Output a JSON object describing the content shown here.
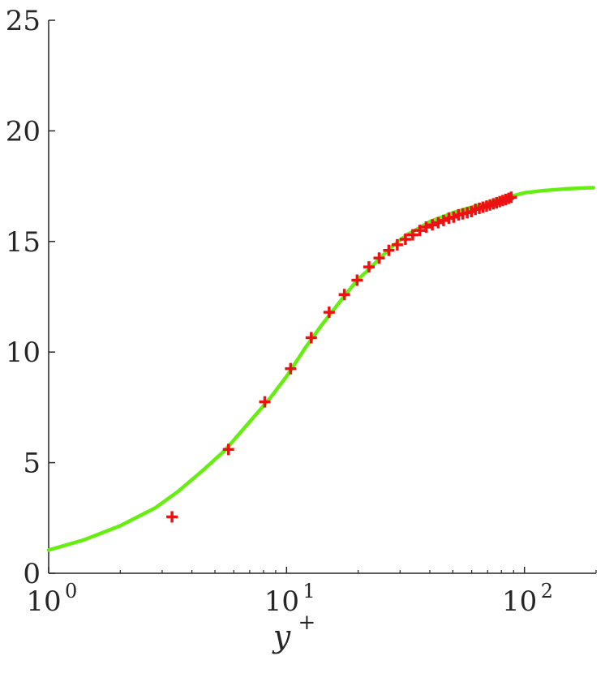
{
  "chart_data": {
    "type": "line",
    "title": "",
    "xlabel": "y",
    "xlabel_sup": "+",
    "ylabel": "",
    "xscale": "log",
    "xlim": [
      1,
      200
    ],
    "ylim": [
      0,
      25
    ],
    "grid": false,
    "x_ticks": [
      {
        "value": 1,
        "base": "10",
        "exp": "0"
      },
      {
        "value": 10,
        "base": "10",
        "exp": "1"
      },
      {
        "value": 100,
        "base": "10",
        "exp": "2"
      }
    ],
    "y_ticks": [
      {
        "value": 0,
        "label": "0"
      },
      {
        "value": 5,
        "label": "5"
      },
      {
        "value": 10,
        "label": "10"
      },
      {
        "value": 15,
        "label": "15"
      },
      {
        "value": 20,
        "label": "20"
      },
      {
        "value": 25,
        "label": "25"
      }
    ],
    "series": [
      {
        "style": "line",
        "color": "#66ee11",
        "x": [
          1.0,
          1.4,
          2.0,
          2.8,
          3.5,
          4.5,
          5.5,
          7.0,
          8.5,
          10.0,
          12.0,
          14.0,
          16.0,
          18.0,
          20.0,
          22.0,
          25.0,
          28.0,
          32.0,
          36.0,
          40.0,
          45.0,
          50.0,
          60.0,
          70.0,
          85.0,
          100.0,
          120.0,
          150.0,
          180.0,
          195.0
        ],
        "y": [
          1.05,
          1.5,
          2.15,
          2.95,
          3.7,
          4.7,
          5.55,
          6.85,
          7.9,
          8.9,
          10.2,
          11.2,
          12.0,
          12.7,
          13.3,
          13.7,
          14.3,
          14.8,
          15.3,
          15.6,
          15.9,
          16.1,
          16.3,
          16.55,
          16.75,
          17.0,
          17.2,
          17.3,
          17.38,
          17.42,
          17.43
        ]
      },
      {
        "style": "marker",
        "marker": "+",
        "color": "#ee1111",
        "x": [
          3.3,
          5.7,
          8.1,
          10.4,
          12.7,
          15.1,
          17.5,
          19.8,
          22.2,
          24.5,
          26.9,
          29.2,
          31.6,
          33.9,
          36.3,
          38.6,
          41.0,
          43.4,
          45.7,
          48.1,
          50.4,
          52.8,
          55.1,
          57.5,
          59.8,
          62.2,
          64.6,
          66.9,
          69.3,
          71.6,
          74.0,
          76.3,
          78.7,
          81.0,
          83.4,
          85.8,
          88.0
        ],
        "y": [
          2.55,
          5.6,
          7.75,
          9.25,
          10.65,
          11.8,
          12.6,
          13.25,
          13.85,
          14.25,
          14.6,
          14.85,
          15.1,
          15.3,
          15.5,
          15.65,
          15.75,
          15.85,
          15.95,
          16.05,
          16.1,
          16.2,
          16.25,
          16.3,
          16.35,
          16.45,
          16.5,
          16.55,
          16.6,
          16.65,
          16.7,
          16.75,
          16.8,
          16.85,
          16.9,
          16.95,
          17.0
        ]
      }
    ]
  }
}
